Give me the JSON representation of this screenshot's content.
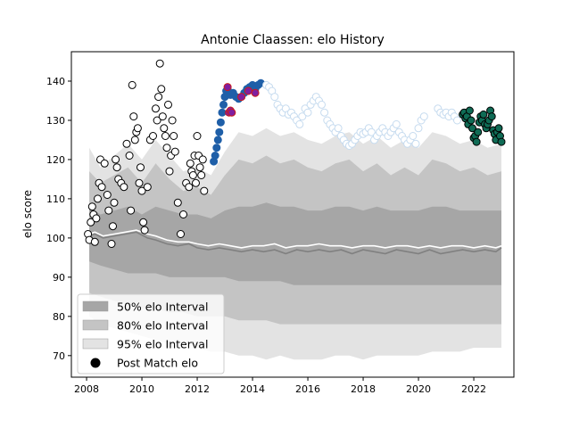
{
  "chart_data": {
    "type": "scatter",
    "title": "Antonie Claassen: elo History",
    "xlabel": "",
    "ylabel": "elo score",
    "xlim": [
      2007.45,
      2023.45
    ],
    "ylim": [
      64.5,
      147.5
    ],
    "xticks": [
      2008,
      2010,
      2012,
      2014,
      2016,
      2018,
      2020,
      2022
    ],
    "yticks": [
      70,
      80,
      90,
      100,
      110,
      120,
      130,
      140
    ],
    "grid": false,
    "legend_position": "lower-left",
    "legend": [
      {
        "label": "50% elo Interval",
        "kind": "patch",
        "color": "#a6a6a6"
      },
      {
        "label": "80% elo Interval",
        "kind": "patch",
        "color": "#c4c4c4"
      },
      {
        "label": "95% elo Interval",
        "kind": "patch",
        "color": "#e3e3e3"
      },
      {
        "label": "Post Match elo",
        "kind": "marker",
        "color": "#000000"
      }
    ],
    "bands": {
      "x": [
        2008.1,
        2008.5,
        2009.0,
        2009.5,
        2010.0,
        2010.5,
        2011.0,
        2011.5,
        2012.0,
        2012.5,
        2013.0,
        2013.5,
        2014.0,
        2014.5,
        2015.0,
        2015.5,
        2016.0,
        2016.5,
        2017.0,
        2017.5,
        2018.0,
        2018.5,
        2019.0,
        2019.5,
        2020.0,
        2020.5,
        2021.0,
        2021.5,
        2022.0,
        2022.5,
        2023.0
      ],
      "p95_high": [
        123,
        118,
        121,
        124,
        120,
        125,
        121,
        117,
        118,
        116,
        122,
        127,
        126,
        128,
        126,
        127,
        125,
        124,
        126,
        127,
        124,
        126,
        123,
        125,
        123,
        127,
        126,
        124,
        125,
        123,
        124
      ],
      "p80_high": [
        117,
        114,
        116,
        118,
        114,
        119,
        115,
        112,
        113,
        111,
        116,
        120,
        119,
        121,
        119,
        120,
        118,
        117,
        119,
        120,
        117,
        119,
        116,
        118,
        116,
        120,
        119,
        117,
        118,
        116,
        117
      ],
      "p50_high": [
        108,
        106,
        107,
        108,
        106,
        108,
        107,
        106,
        106,
        105,
        107,
        108,
        108,
        109,
        108,
        108,
        107,
        107,
        108,
        108,
        107,
        108,
        107,
        107,
        107,
        108,
        108,
        107,
        107,
        107,
        107
      ],
      "p50_low": [
        94,
        93,
        92,
        91,
        91,
        91,
        90,
        90,
        90,
        90,
        90,
        89,
        89,
        89,
        89,
        88,
        88,
        88,
        88,
        88,
        88,
        88,
        88,
        88,
        88,
        88,
        88,
        88,
        88,
        88,
        88
      ],
      "p80_low": [
        86,
        85,
        84,
        83,
        82,
        82,
        81,
        81,
        80,
        80,
        80,
        79,
        79,
        79,
        78,
        78,
        78,
        78,
        78,
        78,
        78,
        78,
        78,
        78,
        78,
        78,
        78,
        78,
        78,
        78,
        78
      ],
      "p95_low": [
        80,
        78,
        77,
        76,
        75,
        74,
        73,
        73,
        72,
        71,
        71,
        70,
        70,
        69,
        70,
        69,
        69,
        69,
        70,
        70,
        69,
        70,
        70,
        70,
        70,
        71,
        71,
        71,
        72,
        72,
        72
      ]
    },
    "series": [
      {
        "color": "#808080",
        "line": true,
        "x": [
          2008.1,
          2008.3,
          2008.6,
          2009.0,
          2009.4,
          2009.8,
          2010.2,
          2010.5,
          2010.9,
          2011.3,
          2011.7,
          2012.0,
          2012.4,
          2012.8,
          2013.2,
          2013.6,
          2014.0,
          2014.4,
          2014.8,
          2015.2,
          2015.6,
          2016.0,
          2016.4,
          2016.8,
          2017.2,
          2017.6,
          2018.0,
          2018.4,
          2018.8,
          2019.2,
          2019.6,
          2020.0,
          2020.4,
          2020.8,
          2021.2,
          2021.6,
          2022.0,
          2022.4,
          2022.8,
          2023.0
        ],
        "y": [
          100.5,
          101,
          100,
          100.5,
          101,
          101.5,
          100,
          99.5,
          98.5,
          98,
          98.5,
          97.5,
          97,
          97.5,
          97,
          96.5,
          97,
          96.5,
          97,
          96,
          97,
          96.5,
          97,
          96.5,
          97,
          96,
          97,
          96.5,
          96,
          97,
          96.5,
          96,
          97,
          96,
          96.5,
          97,
          96.5,
          97,
          96.5,
          97.5
        ]
      },
      {
        "color": "#ffffff",
        "line": true,
        "x": [
          2008.1,
          2008.3,
          2008.6,
          2009.0,
          2009.4,
          2009.8,
          2010.2,
          2010.5,
          2010.9,
          2011.3,
          2011.7,
          2012.0,
          2012.4,
          2012.8,
          2013.2,
          2013.6,
          2014.0,
          2014.4,
          2014.8,
          2015.2,
          2015.6,
          2016.0,
          2016.4,
          2016.8,
          2017.2,
          2017.6,
          2018.0,
          2018.4,
          2018.8,
          2019.2,
          2019.6,
          2020.0,
          2020.4,
          2020.8,
          2021.2,
          2021.6,
          2022.0,
          2022.4,
          2022.8,
          2023.0
        ],
        "y": [
          101,
          101.5,
          100.5,
          101,
          101.5,
          102,
          101,
          100.5,
          99.5,
          99,
          99,
          98.5,
          98,
          98.5,
          98,
          97.5,
          98,
          98,
          98.5,
          97.5,
          98,
          98,
          98.5,
          98,
          98,
          97.5,
          98,
          98,
          97.5,
          98,
          98,
          97.5,
          98,
          97.5,
          98,
          98,
          97.5,
          98,
          97.5,
          98
        ]
      },
      {
        "color": "#ffffff",
        "edge": "#000000",
        "x": [
          2008.05,
          2008.1,
          2008.15,
          2008.2,
          2008.25,
          2008.3,
          2008.35,
          2008.4,
          2008.45,
          2008.5,
          2008.55,
          2008.65,
          2008.75,
          2008.8,
          2008.9,
          2008.95,
          2009.0,
          2009.05,
          2009.1,
          2009.15,
          2009.25,
          2009.35,
          2009.45,
          2009.55,
          2009.6,
          2009.65,
          2009.7,
          2009.75,
          2009.8,
          2009.85,
          2009.9,
          2009.95,
          2010.0,
          2010.05,
          2010.1,
          2010.2,
          2010.3,
          2010.4,
          2010.5,
          2010.55,
          2010.6,
          2010.65,
          2010.7,
          2010.75,
          2010.8,
          2010.85,
          2010.9,
          2010.95,
          2011.0,
          2011.05,
          2011.1,
          2011.15,
          2011.2,
          2011.3,
          2011.4,
          2011.5,
          2011.6,
          2011.7,
          2011.75,
          2011.8,
          2011.85,
          2011.9,
          2011.95,
          2012.0,
          2012.05,
          2012.1,
          2012.15,
          2012.2,
          2012.25
        ],
        "y": [
          101,
          99.5,
          104,
          108,
          106,
          99,
          105,
          110,
          114,
          120,
          113,
          119,
          111,
          107,
          98.5,
          103,
          109,
          120,
          118,
          115,
          114,
          113,
          124,
          121,
          107,
          139,
          131,
          125,
          127,
          128,
          114,
          118,
          112,
          104,
          102,
          113,
          125,
          126,
          133,
          130,
          136,
          144.5,
          138,
          131,
          128,
          126,
          123,
          134,
          117,
          121,
          130,
          126,
          122,
          109,
          101,
          106,
          114,
          113,
          119,
          117,
          116,
          121,
          114,
          126,
          121,
          118,
          116,
          120,
          112
        ]
      },
      {
        "color": "#1f5fa8",
        "edge": "#1f5fa8",
        "x": [
          2012.6,
          2012.65,
          2012.7,
          2012.75,
          2012.8,
          2012.85,
          2012.9,
          2012.95,
          2013.0,
          2013.05,
          2013.1,
          2013.15,
          2013.2,
          2013.3,
          2013.4,
          2013.5,
          2013.6,
          2013.7,
          2013.8,
          2013.9,
          2014.0,
          2014.1,
          2014.2,
          2014.3
        ],
        "y": [
          119.5,
          121,
          123,
          125,
          127,
          129.5,
          132,
          134,
          136,
          137.5,
          138,
          137,
          136.5,
          137,
          136,
          135.5,
          136,
          137,
          138,
          138.5,
          139,
          138,
          139,
          139.5
        ]
      },
      {
        "color": "#7f1fa0",
        "edge": "#cc1b1b",
        "x": [
          2013.1,
          2013.15,
          2013.2,
          2013.25,
          2013.6,
          2013.85,
          2014.1
        ],
        "y": [
          138.5,
          132,
          132.5,
          132,
          136,
          137.5,
          137
        ]
      },
      {
        "color": "#ffffff",
        "edge": "#c6dbef",
        "x": [
          2014.5,
          2014.6,
          2014.7,
          2014.8,
          2014.9,
          2015.0,
          2015.1,
          2015.2,
          2015.3,
          2015.4,
          2015.5,
          2015.6,
          2015.7,
          2015.8,
          2015.9,
          2016.0,
          2016.1,
          2016.2,
          2016.3,
          2016.4,
          2016.5,
          2016.6,
          2016.7,
          2016.8,
          2016.9,
          2017.0,
          2017.1,
          2017.2,
          2017.3,
          2017.4,
          2017.5,
          2017.6,
          2017.7,
          2017.8,
          2017.9,
          2018.0,
          2018.1,
          2018.2,
          2018.3,
          2018.4,
          2018.5,
          2018.6,
          2018.7,
          2018.8,
          2018.9,
          2019.0,
          2019.1,
          2019.2,
          2019.3,
          2019.4,
          2019.5,
          2019.6,
          2019.7,
          2019.8,
          2019.9,
          2020.0,
          2020.1,
          2020.2,
          2020.7,
          2020.8,
          2020.9,
          2021.0,
          2021.1,
          2021.2,
          2021.3,
          2021.4
        ],
        "y": [
          139,
          138.5,
          137.5,
          136,
          134,
          133,
          132,
          133,
          131.5,
          132,
          131,
          130,
          129,
          131,
          133,
          132,
          134,
          135,
          136,
          135,
          134,
          132,
          130,
          129,
          128,
          127,
          128,
          126,
          125,
          124,
          123.5,
          124,
          125,
          126,
          127,
          126.5,
          127,
          128,
          127,
          125,
          126,
          127,
          128,
          127,
          126,
          127,
          128,
          129,
          127,
          126,
          125,
          124,
          125,
          126,
          124,
          128,
          130,
          131,
          133,
          132,
          131.5,
          132,
          131,
          132,
          131,
          130
        ]
      },
      {
        "color": "#0f6b55",
        "edge": "#000000",
        "x": [
          2021.6,
          2021.65,
          2021.7,
          2021.75,
          2021.8,
          2021.85,
          2021.9,
          2021.95,
          2022.0,
          2022.05,
          2022.1,
          2022.15,
          2022.2,
          2022.25,
          2022.3,
          2022.35,
          2022.4,
          2022.45,
          2022.5,
          2022.55,
          2022.6,
          2022.65,
          2022.7,
          2022.75,
          2022.8,
          2022.85,
          2022.9,
          2022.95,
          2023.0
        ],
        "y": [
          131.5,
          132,
          130.5,
          131,
          129,
          132.5,
          130,
          128,
          125.5,
          126,
          124.5,
          127,
          129.5,
          131,
          130,
          131.5,
          129,
          128,
          129,
          130,
          132.5,
          131,
          127.5,
          126.5,
          125,
          127,
          128,
          126,
          124.5
        ]
      }
    ]
  }
}
